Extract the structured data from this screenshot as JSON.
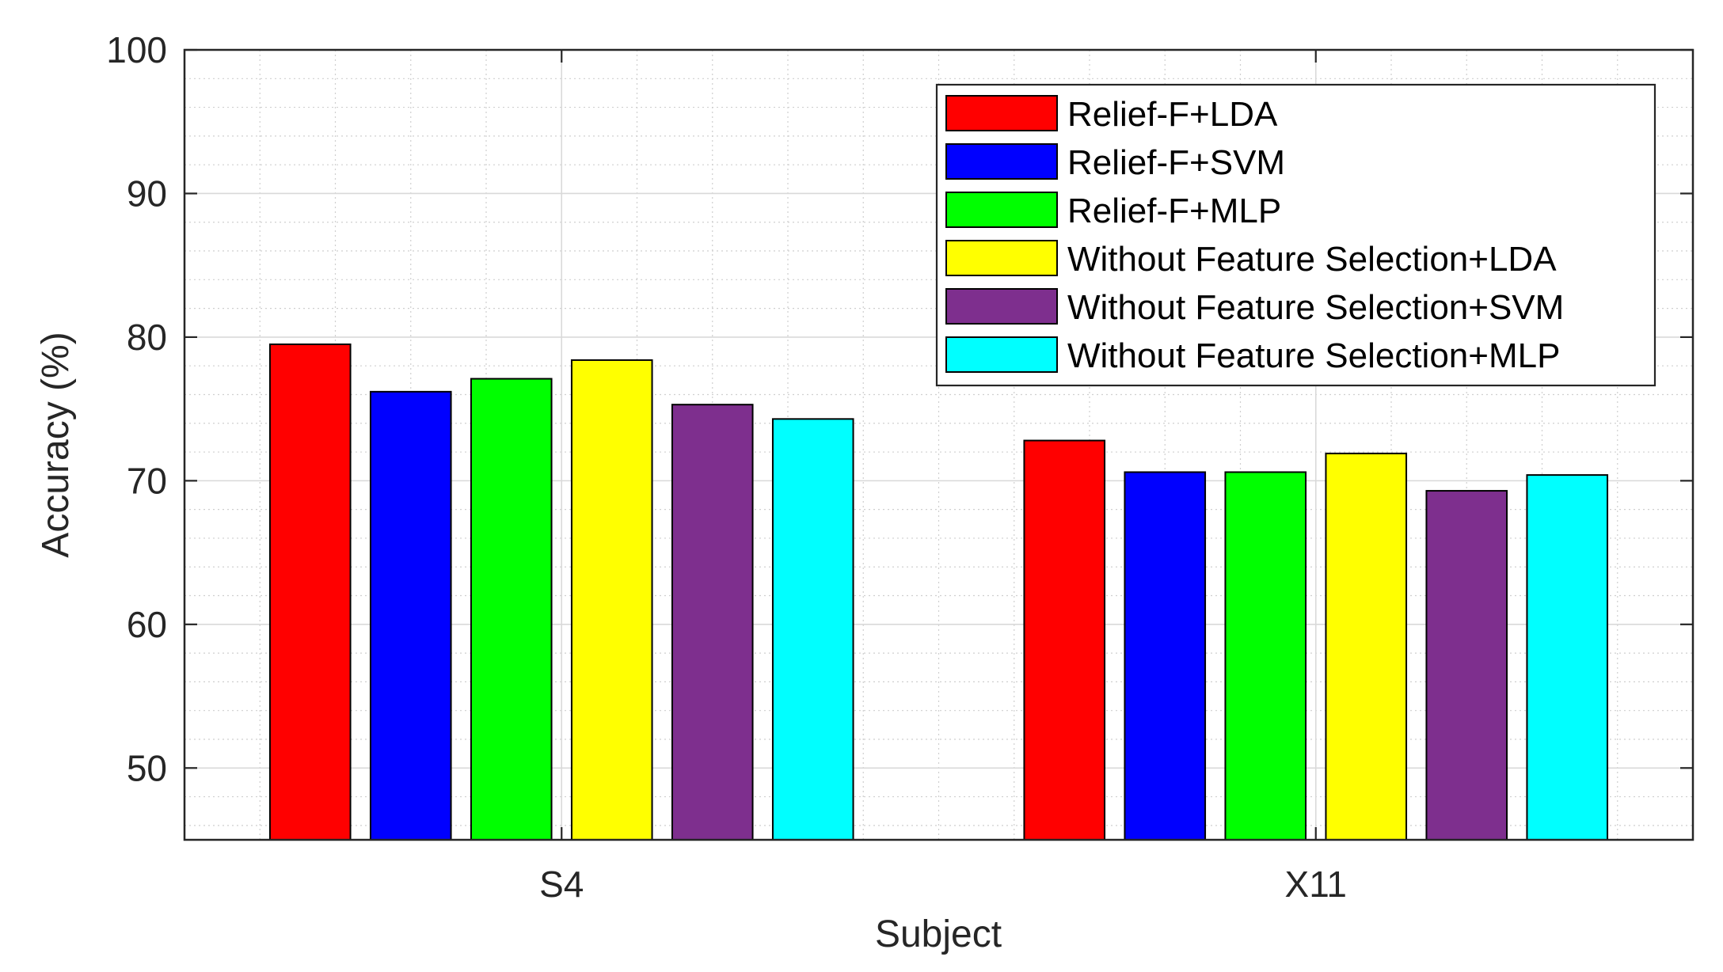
{
  "chart_data": {
    "type": "bar",
    "title": "",
    "xlabel": "Subject",
    "ylabel": "Accuracy (%)",
    "categories": [
      "S4",
      "X11"
    ],
    "ylim": [
      45,
      100
    ],
    "yticks": [
      50,
      60,
      70,
      80,
      90,
      100
    ],
    "grid": true,
    "minor_grid": true,
    "legend_position": "top-right",
    "series": [
      {
        "name": "Relief-F+LDA",
        "color": "#ff0000",
        "values": [
          79.5,
          72.8
        ]
      },
      {
        "name": "Relief-F+SVM",
        "color": "#0000ff",
        "values": [
          76.2,
          70.6
        ]
      },
      {
        "name": "Relief-F+MLP",
        "color": "#00ff00",
        "values": [
          77.1,
          70.6
        ]
      },
      {
        "name": "Without Feature Selection+LDA",
        "color": "#ffff00",
        "values": [
          78.4,
          71.9
        ]
      },
      {
        "name": "Without Feature Selection+SVM",
        "color": "#7e2f8e",
        "values": [
          75.3,
          69.3
        ]
      },
      {
        "name": "Without Feature Selection+MLP",
        "color": "#00ffff",
        "values": [
          74.3,
          70.4
        ]
      }
    ]
  }
}
